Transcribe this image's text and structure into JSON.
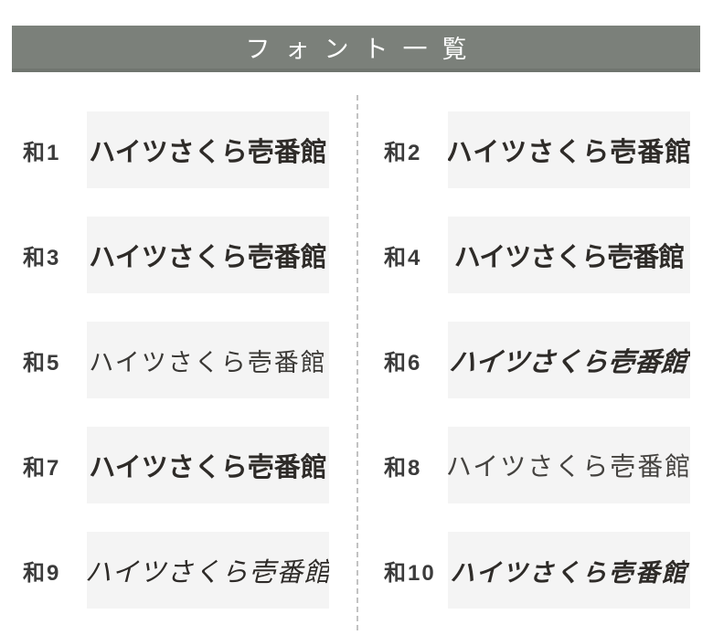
{
  "header": {
    "title": "フォント一覧",
    "bg_color": "#7b807a",
    "text_color": "#ffffff"
  },
  "colors": {
    "sample_box_bg": "#f4f4f4",
    "sample_text": "#2e2b28",
    "label_text": "#3b3b3b",
    "divider": "#c2c2c2",
    "page_bg": "#ffffff"
  },
  "fonts": {
    "shared_sample_text": "ハイツさくら壱番館",
    "items": [
      {
        "label": "和1",
        "sample_text": "ハイツさくら壱番館",
        "style": "gothic-bold"
      },
      {
        "label": "和2",
        "sample_text": "ハイツさくら壱番館",
        "style": "gothic-round-bold"
      },
      {
        "label": "和3",
        "sample_text": "ハイツさくら壱番館",
        "style": "mincho-bold"
      },
      {
        "label": "和4",
        "sample_text": "ハイツさくら壱番館",
        "style": "gothic-heavy"
      },
      {
        "label": "和5",
        "sample_text": "ハイツさくら壱番館",
        "style": "gothic-light"
      },
      {
        "label": "和6",
        "sample_text": "ハイツさくら壱番館",
        "style": "display-slant"
      },
      {
        "label": "和7",
        "sample_text": "ハイツさくら壱番館",
        "style": "gothic-medium"
      },
      {
        "label": "和8",
        "sample_text": "ハイツさくら壱番館",
        "style": "mincho-light"
      },
      {
        "label": "和9",
        "sample_text": "ハイツさくら壱番館",
        "style": "brush"
      },
      {
        "label": "和10",
        "sample_text": "ハイツさくら壱番館",
        "style": "brush-bold"
      }
    ]
  }
}
